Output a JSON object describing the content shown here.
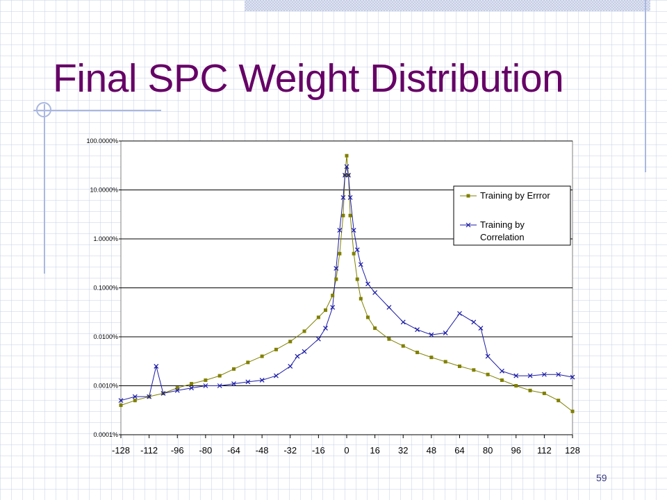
{
  "slide": {
    "title": "Final SPC Weight Distribution",
    "page_number": "59"
  },
  "colors": {
    "title": "#660066",
    "series_error": "#808000",
    "series_correlation": "#1a1aa6",
    "gridline": "#000000",
    "decoration": "#a9b8e0"
  },
  "chart_data": {
    "type": "scatter",
    "title": "",
    "xlabel": "",
    "ylabel": "",
    "y_scale": "log",
    "xlim": [
      -128,
      128
    ],
    "ylim": [
      0.0001,
      100
    ],
    "x_ticks": [
      -128,
      -112,
      -96,
      -80,
      -64,
      -48,
      -32,
      -16,
      0,
      16,
      32,
      48,
      64,
      80,
      96,
      112,
      128
    ],
    "x_tick_labels": [
      "-128",
      "-112",
      "-96",
      "-80",
      "-64",
      "-48",
      "-32",
      "-16",
      "0",
      "16",
      "32",
      "48",
      "64",
      "80",
      "96",
      "112",
      "128"
    ],
    "y_ticks": [
      0.0001,
      0.001,
      0.01,
      0.1,
      1,
      10,
      100
    ],
    "y_tick_labels": [
      "0.0001%",
      "0.0010%",
      "0.0100%",
      "0.1000%",
      "1.0000%",
      "10.0000%",
      "100.0000%"
    ],
    "grid": "horizontal",
    "legend_position": "top-right",
    "series": [
      {
        "name": "Training by Errror",
        "marker": "square",
        "color": "#808000",
        "x": [
          -128,
          -120,
          -112,
          -104,
          -96,
          -88,
          -80,
          -72,
          -64,
          -56,
          -48,
          -40,
          -32,
          -24,
          -16,
          -12,
          -8,
          -6,
          -4,
          -2,
          -1,
          0,
          1,
          2,
          4,
          6,
          8,
          12,
          16,
          24,
          32,
          40,
          48,
          56,
          64,
          72,
          80,
          88,
          96,
          104,
          112,
          120,
          128
        ],
        "y": [
          0.0004,
          0.0005,
          0.0006,
          0.0007,
          0.0009,
          0.0011,
          0.0013,
          0.0016,
          0.0022,
          0.003,
          0.004,
          0.0055,
          0.008,
          0.013,
          0.025,
          0.035,
          0.07,
          0.15,
          0.5,
          3,
          20,
          50,
          20,
          3,
          0.5,
          0.15,
          0.06,
          0.025,
          0.015,
          0.009,
          0.0065,
          0.0048,
          0.0038,
          0.0031,
          0.0025,
          0.0021,
          0.0017,
          0.0013,
          0.001,
          0.0008,
          0.0007,
          0.0005,
          0.0003
        ]
      },
      {
        "name": "Training by Correlation",
        "marker": "x",
        "color": "#1a1aa6",
        "x": [
          -128,
          -120,
          -112,
          -108,
          -104,
          -96,
          -88,
          -80,
          -72,
          -64,
          -56,
          -48,
          -40,
          -32,
          -28,
          -24,
          -16,
          -12,
          -8,
          -6,
          -4,
          -2,
          -1,
          0,
          1,
          2,
          4,
          6,
          8,
          12,
          16,
          24,
          32,
          40,
          48,
          56,
          64,
          72,
          76,
          80,
          88,
          96,
          104,
          112,
          120,
          128
        ],
        "y": [
          0.0005,
          0.0006,
          0.0006,
          0.0025,
          0.0007,
          0.0008,
          0.0009,
          0.001,
          0.001,
          0.0011,
          0.0012,
          0.0013,
          0.0016,
          0.0025,
          0.004,
          0.005,
          0.009,
          0.015,
          0.04,
          0.25,
          1.5,
          7,
          20,
          30,
          20,
          7,
          1.5,
          0.6,
          0.3,
          0.12,
          0.08,
          0.04,
          0.02,
          0.014,
          0.011,
          0.012,
          0.03,
          0.02,
          0.015,
          0.004,
          0.002,
          0.0016,
          0.0016,
          0.0017,
          0.0017,
          0.0015
        ]
      }
    ]
  }
}
